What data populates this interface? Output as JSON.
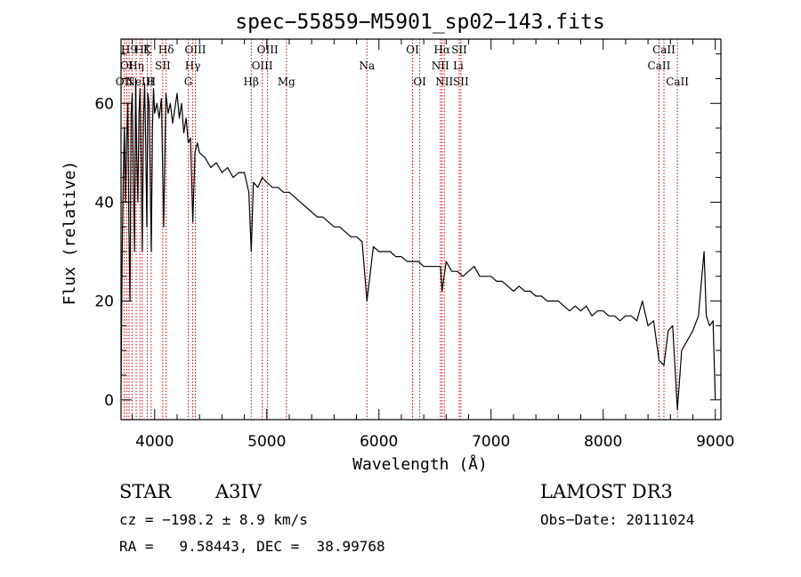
{
  "chart_data": {
    "type": "line",
    "title": "spec−55859−M5901_sp02−143.fits",
    "xlabel": "Wavelength (Å)",
    "ylabel": "Flux (relative)",
    "xlim": [
      3700,
      9050
    ],
    "ylim": [
      -4,
      73
    ],
    "x_ticks": [
      4000,
      5000,
      6000,
      7000,
      8000,
      9000
    ],
    "x_tick_labels": [
      "4000",
      "5000",
      "6000",
      "7000",
      "8000",
      "9000"
    ],
    "y_ticks": [
      0,
      20,
      40,
      60
    ],
    "y_tick_labels": [
      "0",
      "20",
      "40",
      "60"
    ],
    "x_minor_step": 200,
    "y_minor_step": 5,
    "grid": false,
    "line_color": "#000000",
    "marker_color": "#cc0000",
    "series": [
      {
        "name": "Flux",
        "x": [
          3700,
          3710,
          3720,
          3730,
          3740,
          3750,
          3760,
          3770,
          3780,
          3790,
          3800,
          3810,
          3820,
          3830,
          3840,
          3850,
          3860,
          3870,
          3880,
          3890,
          3900,
          3910,
          3920,
          3930,
          3940,
          3950,
          3960,
          3970,
          3980,
          3990,
          4000,
          4020,
          4040,
          4060,
          4080,
          4100,
          4120,
          4140,
          4160,
          4180,
          4200,
          4220,
          4240,
          4260,
          4280,
          4300,
          4320,
          4340,
          4360,
          4380,
          4400,
          4450,
          4500,
          4550,
          4600,
          4650,
          4700,
          4750,
          4800,
          4840,
          4861,
          4880,
          4920,
          4960,
          5000,
          5050,
          5100,
          5150,
          5200,
          5250,
          5300,
          5350,
          5400,
          5450,
          5500,
          5550,
          5600,
          5650,
          5700,
          5750,
          5800,
          5850,
          5893,
          5950,
          6000,
          6050,
          6100,
          6150,
          6200,
          6250,
          6300,
          6350,
          6400,
          6450,
          6500,
          6550,
          6563,
          6600,
          6650,
          6700,
          6750,
          6800,
          6850,
          6900,
          6950,
          7000,
          7050,
          7100,
          7150,
          7200,
          7250,
          7300,
          7350,
          7400,
          7450,
          7500,
          7550,
          7600,
          7650,
          7700,
          7750,
          7800,
          7850,
          7900,
          7950,
          8000,
          8050,
          8100,
          8150,
          8200,
          8250,
          8300,
          8350,
          8400,
          8450,
          8498,
          8542,
          8580,
          8620,
          8662,
          8700,
          8750,
          8800,
          8850,
          8880,
          8900,
          8920,
          8950,
          8980,
          9000
        ],
        "values": [
          2,
          30,
          45,
          55,
          40,
          52,
          60,
          35,
          20,
          58,
          62,
          45,
          30,
          65,
          50,
          40,
          58,
          63,
          48,
          30,
          57,
          64,
          52,
          35,
          62,
          60,
          45,
          30,
          55,
          63,
          58,
          60,
          57,
          61,
          35,
          62,
          58,
          60,
          56,
          59,
          62,
          57,
          60,
          54,
          57,
          52,
          53,
          36,
          50,
          52,
          50,
          49,
          47,
          48,
          46,
          47,
          45,
          46,
          46,
          42,
          30,
          44,
          43,
          45,
          44,
          43,
          43,
          42,
          42,
          41,
          40,
          39,
          38,
          37,
          37,
          36,
          35,
          35,
          34,
          33,
          33,
          32,
          20,
          31,
          30,
          30,
          30,
          29,
          29,
          28,
          28,
          28,
          27,
          27,
          27,
          27,
          22,
          28,
          26,
          26,
          25,
          26,
          27,
          25,
          25,
          25,
          24,
          24,
          23,
          22,
          23,
          22,
          22,
          21,
          21,
          20,
          20,
          20,
          19,
          18,
          19,
          18,
          19,
          17,
          18,
          18,
          17,
          17,
          16,
          17,
          17,
          16,
          20,
          15,
          16,
          8,
          7,
          14,
          15,
          -2,
          10,
          12,
          14,
          17,
          25,
          30,
          17,
          15,
          16,
          0
        ]
      }
    ],
    "line_markers": [
      {
        "wavelength": 3727,
        "label": "OII",
        "row": 3
      },
      {
        "wavelength": 3750,
        "label": "OI",
        "row": 2
      },
      {
        "wavelength": 3771,
        "label": "H9",
        "row": 1
      },
      {
        "wavelength": 3798,
        "label": "",
        "row": 0
      },
      {
        "wavelength": 3835,
        "label": "Hη",
        "row": 2
      },
      {
        "wavelength": 3869,
        "label": "NeIII",
        "row": 3
      },
      {
        "wavelength": 3889,
        "label": "Hζ",
        "row": 1
      },
      {
        "wavelength": 3934,
        "label": "K",
        "row": 1
      },
      {
        "wavelength": 3969,
        "label": "H",
        "row": 3
      },
      {
        "wavelength": 4072,
        "label": "SII",
        "row": 2
      },
      {
        "wavelength": 4102,
        "label": "Hδ",
        "row": 1
      },
      {
        "wavelength": 4300,
        "label": "G",
        "row": 3
      },
      {
        "wavelength": 4340,
        "label": "Hγ",
        "row": 2
      },
      {
        "wavelength": 4363,
        "label": "OIII",
        "row": 1
      },
      {
        "wavelength": 4861,
        "label": "Hβ",
        "row": 3
      },
      {
        "wavelength": 4959,
        "label": "OIII",
        "row": 2
      },
      {
        "wavelength": 5007,
        "label": "OIII",
        "row": 1
      },
      {
        "wavelength": 5175,
        "label": "Mg",
        "row": 3
      },
      {
        "wavelength": 5893,
        "label": "Na",
        "row": 2
      },
      {
        "wavelength": 6300,
        "label": "OI",
        "row": 1
      },
      {
        "wavelength": 6364,
        "label": "OI",
        "row": 3
      },
      {
        "wavelength": 6548,
        "label": "NII",
        "row": 2
      },
      {
        "wavelength": 6563,
        "label": "Hα",
        "row": 1
      },
      {
        "wavelength": 6583,
        "label": "NII",
        "row": 3
      },
      {
        "wavelength": 6716,
        "label": "SII",
        "row": 1
      },
      {
        "wavelength": 6731,
        "label": "SII",
        "row": 3
      },
      {
        "wavelength": 8498,
        "label": "CaII",
        "row": 2
      },
      {
        "wavelength": 8542,
        "label": "CaII",
        "row": 1
      },
      {
        "wavelength": 8662,
        "label": "CaII",
        "row": 3
      }
    ],
    "li_label": "Li"
  },
  "info": {
    "class": "STAR",
    "subclass": "A3IV",
    "survey": "LAMOST DR3",
    "cz": "cz = −198.2 ± 8.9 km/s",
    "obs_date": "Obs−Date: 20111024",
    "radec": "RA =   9.58443, DEC =  38.99768"
  }
}
